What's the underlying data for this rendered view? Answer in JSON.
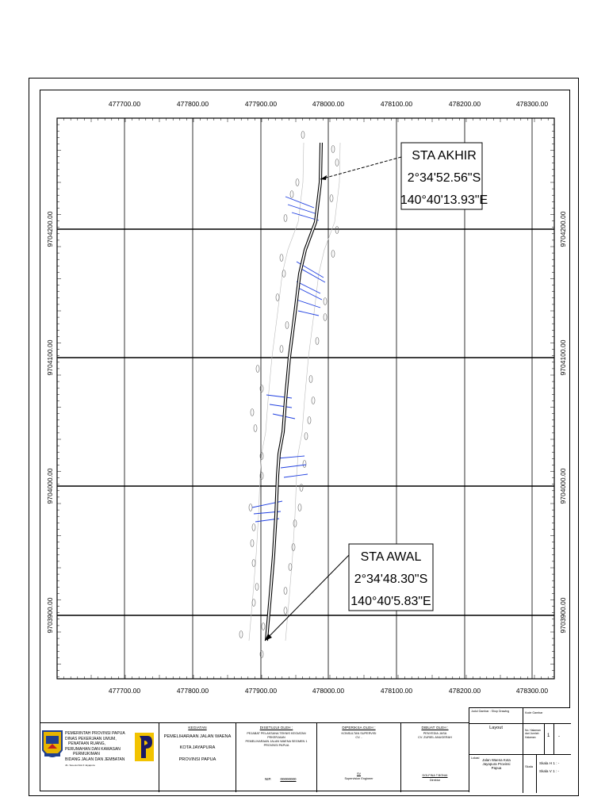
{
  "grid": {
    "eastings": [
      "477700.00",
      "477800.00",
      "477900.00",
      "478000.00",
      "478100.00",
      "478200.00",
      "478300.00"
    ],
    "northings": [
      "9704200.00",
      "9704100.00",
      "9704000.00",
      "9703900.00"
    ]
  },
  "callouts": {
    "akhir": {
      "title": "STA AKHIR",
      "lat": "2°34'52.56\"S",
      "lon": "140°40'13.93\"E"
    },
    "awal": {
      "title": "STA AWAL",
      "lat": "2°34'48.30\"S",
      "lon": "140°40'5.83\"E"
    }
  },
  "title_block": {
    "agency": {
      "line1": "PEMERINTAH PROVINSI PAPUA",
      "line2": "DINAS PEKERJAAN UMUM,",
      "line3": "PENATAAN RUANG,",
      "line4": "PERUMAHAN DAN KAWASAN",
      "line5": "PERMUKIMAN",
      "line6": "BIDANG JALAN DAN JEMBATAN",
      "address": "Jln. Soa-siu Dok II Jayapura"
    },
    "kegiatan": {
      "header": "KEGIATAN",
      "name": "PEMELIHARAAN JALAN WAENA",
      "city": "KOTA JAYAPURA",
      "province": "PROVINSI PAPUA"
    },
    "disetujui": {
      "header": "DISETUJUI OLEH :",
      "line1": "PEJABAT PELAKSANA TEKNIS KEGIATAN",
      "line2": "PEKERJAAN",
      "line3": "PEMELIHARAAN JALAN WAENA SEGMEN 1",
      "line4": "PROVINSI PAPUA",
      "nip_label": "NIP.",
      "nip_value": "00000000"
    },
    "diperiksa": {
      "header": "DIPERIKSA OLEH :",
      "line1": "KONSULTAN SUPERVISI",
      "line2": "CV. -",
      "sign_name": "SV",
      "sign_role": "Supervision Engineer"
    },
    "dibuat": {
      "header": "DIBUAT OLEH :",
      "line1": "PENYEDIA JASA",
      "line2": "CV. ZURIEL ANUGERAH",
      "sign_name": "DOLFINA T.BONAI",
      "sign_role": "Direktur"
    },
    "drawing": {
      "title_label": "Judul Gambar : Shop Drawing",
      "code_label": "Kode Gambar",
      "title_value": "Layout",
      "sheet_no_label": "No. Halaman dari Jumlah Halaman",
      "sheet_no": "1",
      "sheet_total": "-",
      "location_label": "Lokasi",
      "location_value": "Jalan Waena Kota Jayapura Provinsi Papua",
      "scale_label": "Skala",
      "scale_h": "Skala H 1 : -",
      "scale_v": "Skala V 1 : -"
    }
  }
}
